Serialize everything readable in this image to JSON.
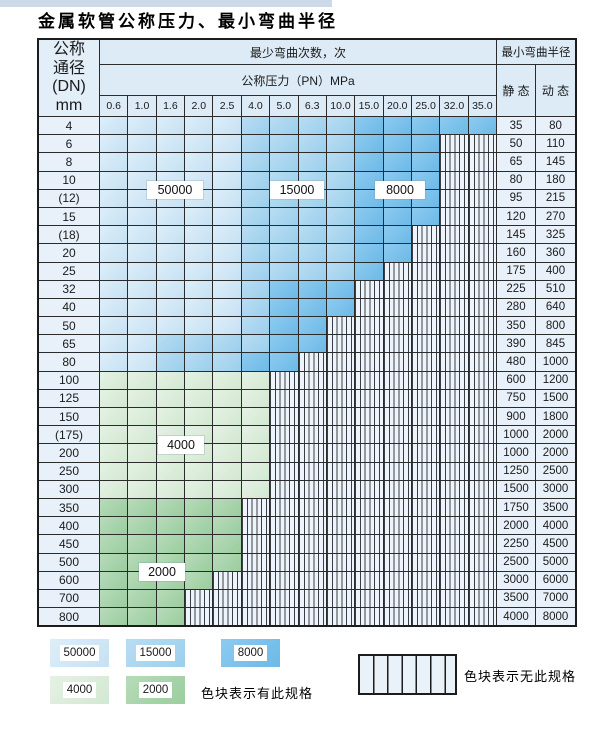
{
  "title": "金属软管公称压力、最小弯曲半径",
  "table": {
    "corner_header": [
      "公称",
      "通径",
      "(DN)",
      "mm"
    ],
    "bend_header": "最少弯曲次数，次",
    "pressure_header": "公称压力（PN）MPa",
    "radius_header": "最小弯曲半径",
    "static_header": "静 态",
    "dynamic_header": "动 态",
    "pressure_columns": [
      "0.6",
      "1.0",
      "1.6",
      "2.0",
      "2.5",
      "4.0",
      "5.0",
      "6.3",
      "10.0",
      "15.0",
      "20.0",
      "25.0",
      "32.0",
      "35.0"
    ],
    "cell_code_meaning": {
      "L": "50000次-浅蓝",
      "M": "15000次-中蓝",
      "D": "8000次-深蓝",
      "g": "4000次-浅绿",
      "G": "2000次-中绿",
      "X": "无此规格-竖线阴影"
    },
    "rows": [
      {
        "dn": "4",
        "cells": "LLLLLMMMMDDDDD",
        "static": "35",
        "dynamic": "80"
      },
      {
        "dn": "6",
        "cells": "LLLLLMMMMDDDXX",
        "static": "50",
        "dynamic": "110"
      },
      {
        "dn": "8",
        "cells": "LLLLLMMMMDDDXX",
        "static": "65",
        "dynamic": "145"
      },
      {
        "dn": "10",
        "cells": "LLLLLMMMMDDDXX",
        "static": "80",
        "dynamic": "180"
      },
      {
        "dn": "(12)",
        "cells": "LLLLLMMMMDDDXX",
        "static": "95",
        "dynamic": "215"
      },
      {
        "dn": "15",
        "cells": "LLLLLMMMMDDDXX",
        "static": "120",
        "dynamic": "270"
      },
      {
        "dn": "(18)",
        "cells": "LLLLLMMMMDDXXX",
        "static": "145",
        "dynamic": "325"
      },
      {
        "dn": "20",
        "cells": "LLLLLMMMMDDXXX",
        "static": "160",
        "dynamic": "360"
      },
      {
        "dn": "25",
        "cells": "LLLLLMMMMDXXXX",
        "static": "175",
        "dynamic": "400"
      },
      {
        "dn": "32",
        "cells": "LLLLLMDDDXXXXX",
        "static": "225",
        "dynamic": "510"
      },
      {
        "dn": "40",
        "cells": "LLLLLMDDDXXXXX",
        "static": "280",
        "dynamic": "640"
      },
      {
        "dn": "50",
        "cells": "LLLLLMDDXXXXXX",
        "static": "350",
        "dynamic": "800"
      },
      {
        "dn": "65",
        "cells": "LLMMMMDDXXXXXX",
        "static": "390",
        "dynamic": "845"
      },
      {
        "dn": "80",
        "cells": "LLMMMDDXXXXXXX",
        "static": "480",
        "dynamic": "1000"
      },
      {
        "dn": "100",
        "cells": "ggggggXXXXXXXX",
        "static": "600",
        "dynamic": "1200"
      },
      {
        "dn": "125",
        "cells": "ggggggXXXXXXXX",
        "static": "750",
        "dynamic": "1500"
      },
      {
        "dn": "150",
        "cells": "ggggggXXXXXXXX",
        "static": "900",
        "dynamic": "1800"
      },
      {
        "dn": "(175)",
        "cells": "ggggggXXXXXXXX",
        "static": "1000",
        "dynamic": "2000"
      },
      {
        "dn": "200",
        "cells": "ggggggXXXXXXXX",
        "static": "1000",
        "dynamic": "2000"
      },
      {
        "dn": "250",
        "cells": "ggggggXXXXXXXX",
        "static": "1250",
        "dynamic": "2500"
      },
      {
        "dn": "300",
        "cells": "ggggggXXXXXXXX",
        "static": "1500",
        "dynamic": "3000"
      },
      {
        "dn": "350",
        "cells": "GGGGGXXXXXXXXX",
        "static": "1750",
        "dynamic": "3500"
      },
      {
        "dn": "400",
        "cells": "GGGGGXXXXXXXXX",
        "static": "2000",
        "dynamic": "4000"
      },
      {
        "dn": "450",
        "cells": "GGGGGXXXXXXXXX",
        "static": "2250",
        "dynamic": "4500"
      },
      {
        "dn": "500",
        "cells": "GGGGGXXXXXXXXX",
        "static": "2500",
        "dynamic": "5000"
      },
      {
        "dn": "600",
        "cells": "GGGGXXXXXXXXXX",
        "static": "3000",
        "dynamic": "6000"
      },
      {
        "dn": "700",
        "cells": "GGGXXXXXXXXXXX",
        "static": "3500",
        "dynamic": "7000"
      },
      {
        "dn": "800",
        "cells": "GGGXXXXXXXXXXX",
        "static": "4000",
        "dynamic": "8000"
      }
    ],
    "zone_labels": [
      "50000",
      "15000",
      "8000",
      "4000",
      "2000"
    ]
  },
  "legend": {
    "exists_blocks": [
      {
        "label": "50000",
        "tone": "light-blue"
      },
      {
        "label": "15000",
        "tone": "medium-blue"
      },
      {
        "label": "8000",
        "tone": "dark-blue"
      },
      {
        "label": "4000",
        "tone": "light-green"
      },
      {
        "label": "2000",
        "tone": "medium-green"
      }
    ],
    "exists_text": "色块表示有此规格",
    "none_text": "色块表示无此规格"
  },
  "colors": {
    "blue_50000": "#cfe6f6",
    "blue_15000": "#a6d5ef",
    "blue_8000": "#7ac3ec",
    "green_4000": "#dbecda",
    "green_2000": "#a8d4ab",
    "grid_line": "#2b2b2b",
    "hatch_bg": "#eef4fb",
    "header_bg": "#dcebf6"
  }
}
